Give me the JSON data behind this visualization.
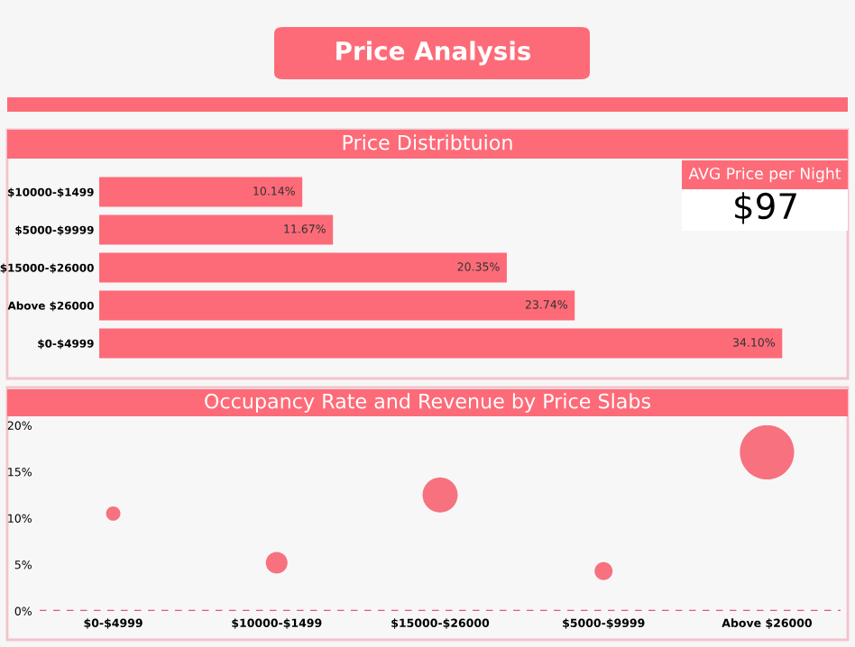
{
  "chart_data": [
    {
      "type": "other",
      "title": "Price Analysis"
    },
    {
      "type": "bar",
      "title": "Price Distribtuion",
      "orientation": "horizontal",
      "color": "#fd6b78",
      "categories": [
        "$10000-$1499",
        "$5000-$9999",
        "$15000-$26000",
        "Above $26000",
        "$0-$4999"
      ],
      "values": [
        10.14,
        11.67,
        20.35,
        23.74,
        34.1
      ],
      "value_labels": [
        "10.14%",
        "11.67%",
        "20.35%",
        "23.74%",
        "34.10%"
      ]
    },
    {
      "type": "other",
      "title": "AVG Price per Night",
      "annotations": [
        "$97"
      ]
    },
    {
      "type": "bubble",
      "title": "Occupancy Rate and Revenue by Price Slabs",
      "color": "#f7717f",
      "categories": [
        "$0-$4999",
        "$10000-$1499",
        "$15000-$26000",
        "$5000-$9999",
        "Above $26000"
      ],
      "values": [
        10.5,
        5.2,
        12.5,
        4.3,
        17.1
      ],
      "sizes": [
        0.07,
        0.16,
        0.42,
        0.11,
        1
      ],
      "ylim": [
        0,
        20
      ],
      "yticks": [
        {
          "value": 0,
          "label": "0%"
        },
        {
          "value": 5,
          "label": "5%"
        },
        {
          "value": 10,
          "label": "10%"
        },
        {
          "value": 15,
          "label": "15%"
        },
        {
          "value": 20,
          "label": "20%"
        }
      ],
      "grid": false,
      "legend": false,
      "ref_lines": [
        {
          "axis": "y",
          "value": 0,
          "color": "#e8557a",
          "line_style": "dashed"
        }
      ]
    }
  ]
}
